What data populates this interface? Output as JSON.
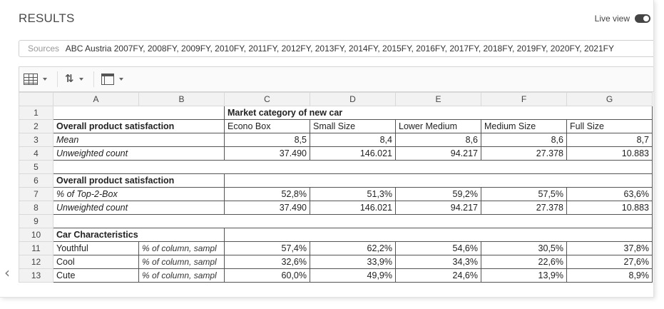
{
  "header": {
    "title": "RESULTS",
    "live_view_label": "Live view"
  },
  "sources": {
    "label": "Sources",
    "value": "ABC Austria 2007FY, 2008FY, 2009FY, 2010FY, 2011FY, 2012FY, 2013FY, 2014FY, 2015FY, 2016FY, 2017FY, 2018FY, 2019FY, 2020FY, 2021FY"
  },
  "toolbar": {
    "icons": [
      "table-icon",
      "sort-icon",
      "frame-icon"
    ]
  },
  "grid": {
    "columns": [
      "A",
      "B",
      "C",
      "D",
      "E",
      "F",
      "G"
    ],
    "rows": [
      {
        "n": "1",
        "a": "",
        "b": "",
        "header": "Market category of new car"
      },
      {
        "n": "2",
        "a": "Overall product satisfaction",
        "b": "",
        "c": "Econo Box",
        "d": "Small Size",
        "e": "Lower Medium",
        "f": "Medium Size",
        "g": "Full Size"
      },
      {
        "n": "3",
        "a": "Mean",
        "b": "",
        "c": "8,5",
        "d": "8,4",
        "e": "8,6",
        "f": "8,6",
        "g": "8,7"
      },
      {
        "n": "4",
        "a": "Unweighted count",
        "b": "",
        "c": "37.490",
        "d": "146.021",
        "e": "94.217",
        "f": "27.378",
        "g": "10.883"
      },
      {
        "n": "5"
      },
      {
        "n": "6",
        "a": "Overall product satisfaction"
      },
      {
        "n": "7",
        "a": "% of Top-2-Box",
        "b": "",
        "c": "52,8%",
        "d": "51,3%",
        "e": "59,2%",
        "f": "57,5%",
        "g": "63,6%"
      },
      {
        "n": "8",
        "a": "Unweighted count",
        "b": "",
        "c": "37.490",
        "d": "146.021",
        "e": "94.217",
        "f": "27.378",
        "g": "10.883"
      },
      {
        "n": "9"
      },
      {
        "n": "10",
        "a": "Car Characteristics"
      },
      {
        "n": "11",
        "a": "Youthful",
        "b": "% of column, sampl",
        "c": "57,4%",
        "d": "62,2%",
        "e": "54,6%",
        "f": "30,5%",
        "g": "37,8%"
      },
      {
        "n": "12",
        "a": "Cool",
        "b": "% of column, sampl",
        "c": "32,6%",
        "d": "33,9%",
        "e": "34,3%",
        "f": "22,6%",
        "g": "27,6%"
      },
      {
        "n": "13",
        "a": "Cute",
        "b": "% of column, sampl",
        "c": "60,0%",
        "d": "49,9%",
        "e": "24,6%",
        "f": "13,9%",
        "g": "8,9%"
      }
    ]
  }
}
